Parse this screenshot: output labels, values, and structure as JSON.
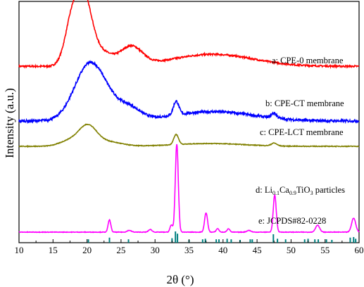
{
  "chart_data": {
    "type": "line",
    "xlabel": "2θ (°)",
    "ylabel": "Intensity (a.u.)",
    "xlim": [
      10,
      60
    ],
    "xticks": [
      10,
      15,
      20,
      25,
      30,
      35,
      40,
      45,
      50,
      55,
      60
    ],
    "yticks_shown": false,
    "series": [
      {
        "name": "a: CPE-0 membrane",
        "color": "#ff0000",
        "baseline": 0.06,
        "noise": 0.025,
        "peaks": [
          {
            "x": 18.0,
            "h": 0.8,
            "w": 1.1
          },
          {
            "x": 19.8,
            "h": 0.7,
            "w": 1.0
          },
          {
            "x": 21.5,
            "h": 0.25,
            "w": 1.8
          },
          {
            "x": 26.5,
            "h": 0.28,
            "w": 1.6
          },
          {
            "x": 38.5,
            "h": 0.18,
            "w": 6.0
          }
        ]
      },
      {
        "name": "b: CPE-CT membrane",
        "color": "#0000ff",
        "baseline": 0.0,
        "noise": 0.04,
        "peaks": [
          {
            "x": 20.3,
            "h": 0.85,
            "w": 2.2
          },
          {
            "x": 23.5,
            "h": 0.2,
            "w": 2.5
          },
          {
            "x": 26.5,
            "h": 0.12,
            "w": 1.5
          },
          {
            "x": 33.1,
            "h": 0.22,
            "w": 0.4
          },
          {
            "x": 38.5,
            "h": 0.15,
            "w": 6.0
          },
          {
            "x": 47.5,
            "h": 0.08,
            "w": 0.4
          }
        ]
      },
      {
        "name": "c: CPE-LCT membrane",
        "color": "#808000",
        "baseline": 0.0,
        "noise": 0.012,
        "peaks": [
          {
            "x": 17.5,
            "h": 0.1,
            "w": 1.5
          },
          {
            "x": 20.1,
            "h": 0.34,
            "w": 1.3
          },
          {
            "x": 23.0,
            "h": 0.08,
            "w": 2.0
          },
          {
            "x": 33.1,
            "h": 0.18,
            "w": 0.35
          },
          {
            "x": 38.0,
            "h": 0.05,
            "w": 5.0
          },
          {
            "x": 47.5,
            "h": 0.05,
            "w": 0.4
          }
        ]
      },
      {
        "name": "d: Li0.1Ca0.9TiO3 particles",
        "color": "#ff00ff",
        "baseline": 0.0,
        "noise": 0.006,
        "peaks": [
          {
            "x": 23.3,
            "h": 0.14,
            "w": 0.2
          },
          {
            "x": 26.2,
            "h": 0.02,
            "w": 0.3
          },
          {
            "x": 29.3,
            "h": 0.03,
            "w": 0.25
          },
          {
            "x": 32.4,
            "h": 0.08,
            "w": 0.2
          },
          {
            "x": 33.2,
            "h": 1.0,
            "w": 0.22
          },
          {
            "x": 37.5,
            "h": 0.22,
            "w": 0.22
          },
          {
            "x": 39.2,
            "h": 0.04,
            "w": 0.2
          },
          {
            "x": 40.8,
            "h": 0.04,
            "w": 0.2
          },
          {
            "x": 43.8,
            "h": 0.02,
            "w": 0.3
          },
          {
            "x": 47.6,
            "h": 0.42,
            "w": 0.22
          },
          {
            "x": 53.9,
            "h": 0.08,
            "w": 0.3
          },
          {
            "x": 59.2,
            "h": 0.16,
            "w": 0.3
          }
        ]
      }
    ],
    "reference": {
      "name": "e: JCPDS#82-0228",
      "color": "#008080",
      "lines": [
        {
          "x": 20.2,
          "h": 0.3
        },
        {
          "x": 23.3,
          "h": 0.45
        },
        {
          "x": 26.1,
          "h": 0.3
        },
        {
          "x": 32.5,
          "h": 0.4
        },
        {
          "x": 33.0,
          "h": 1.0
        },
        {
          "x": 33.3,
          "h": 0.8
        },
        {
          "x": 35.0,
          "h": 0.25
        },
        {
          "x": 37.0,
          "h": 0.3
        },
        {
          "x": 37.4,
          "h": 0.35
        },
        {
          "x": 39.0,
          "h": 0.3
        },
        {
          "x": 39.4,
          "h": 0.3
        },
        {
          "x": 40.6,
          "h": 0.35
        },
        {
          "x": 41.2,
          "h": 0.3
        },
        {
          "x": 42.5,
          "h": 0.25
        },
        {
          "x": 44.0,
          "h": 0.3
        },
        {
          "x": 44.3,
          "h": 0.3
        },
        {
          "x": 47.4,
          "h": 0.75
        },
        {
          "x": 48.0,
          "h": 0.35
        },
        {
          "x": 49.2,
          "h": 0.3
        },
        {
          "x": 52.0,
          "h": 0.3
        },
        {
          "x": 52.5,
          "h": 0.35
        },
        {
          "x": 53.5,
          "h": 0.3
        },
        {
          "x": 54.0,
          "h": 0.3
        },
        {
          "x": 55.2,
          "h": 0.3
        },
        {
          "x": 56.0,
          "h": 0.25
        },
        {
          "x": 58.7,
          "h": 0.45
        },
        {
          "x": 59.2,
          "h": 0.5
        },
        {
          "x": 59.5,
          "h": 0.35
        }
      ]
    }
  }
}
